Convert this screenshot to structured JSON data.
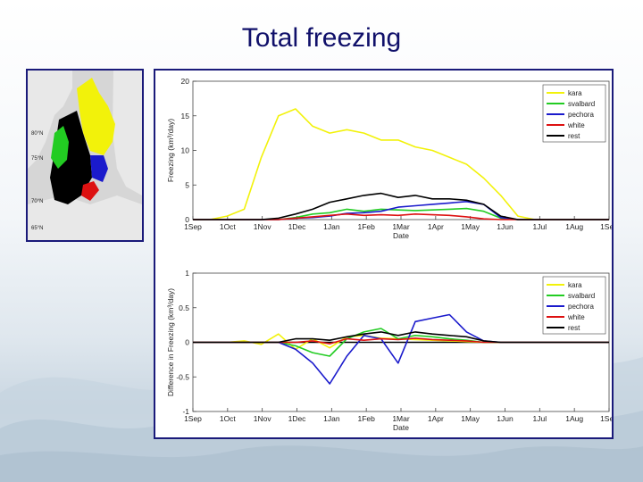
{
  "slide": {
    "title": "Total freezing"
  },
  "colors": {
    "kara": "#f2f20a",
    "svalbard": "#22cc22",
    "pechora": "#1a1acc",
    "white": "#dd1111",
    "rest": "#000000"
  },
  "map": {
    "labels": [
      "80°N",
      "75°N",
      "70°N",
      "65°N"
    ],
    "regions": [
      "kara",
      "svalbard",
      "pechora",
      "white",
      "rest"
    ]
  },
  "chart_data": [
    {
      "type": "line",
      "xlabel": "Date",
      "ylabel": "Freezing  (km³/day)",
      "ylim": [
        0,
        20
      ],
      "yticks": [
        "0",
        "5",
        "10",
        "15",
        "20"
      ],
      "xticks": [
        "1Sep",
        "1Oct",
        "1Nov",
        "1Dec",
        "1Jan",
        "1Feb",
        "1Mar",
        "1Apr",
        "1May",
        "1Jun",
        "1Jul",
        "1Aug",
        "1Sep"
      ],
      "legend_position": "top-right",
      "x": [
        0,
        15,
        30,
        45,
        60,
        75,
        90,
        105,
        120,
        135,
        150,
        165,
        180,
        195,
        210,
        225,
        240,
        255,
        270,
        285,
        300,
        315,
        330,
        345,
        365
      ],
      "series": [
        {
          "name": "kara",
          "values": [
            0,
            0,
            0.5,
            1.5,
            9,
            15,
            16,
            13.5,
            12.5,
            13,
            12.5,
            11.5,
            11.5,
            10.5,
            10,
            9,
            8,
            6,
            3.5,
            0.5,
            0,
            0,
            0,
            0,
            0
          ]
        },
        {
          "name": "svalbard",
          "values": [
            0,
            0,
            0,
            0,
            0,
            0,
            0.3,
            0.8,
            1,
            1.5,
            1.2,
            1.5,
            1.4,
            1.3,
            1.4,
            1.5,
            1.6,
            1.2,
            0.2,
            0,
            0,
            0,
            0,
            0,
            0
          ]
        },
        {
          "name": "pechora",
          "values": [
            0,
            0,
            0,
            0,
            0,
            0,
            0.2,
            0.3,
            0.5,
            0.9,
            1,
            1.2,
            1.8,
            2,
            2.2,
            2.4,
            2.6,
            2.2,
            0.3,
            0,
            0,
            0,
            0,
            0,
            0
          ]
        },
        {
          "name": "white",
          "values": [
            0,
            0,
            0,
            0,
            0,
            0,
            0.2,
            0.4,
            0.6,
            0.8,
            0.6,
            0.7,
            0.6,
            0.8,
            0.7,
            0.6,
            0.4,
            0.1,
            0,
            0,
            0,
            0,
            0,
            0,
            0
          ]
        },
        {
          "name": "rest",
          "values": [
            0,
            0,
            0,
            0,
            0,
            0.2,
            0.8,
            1.5,
            2.5,
            3,
            3.5,
            3.8,
            3.2,
            3.5,
            3,
            3,
            2.8,
            2.2,
            0.5,
            0,
            0,
            0,
            0,
            0,
            0
          ]
        }
      ]
    },
    {
      "type": "line",
      "xlabel": "Date",
      "ylabel": "Difference in Freezing  (km³/day)",
      "ylim": [
        -1,
        1
      ],
      "yticks": [
        "-1",
        "-0.5",
        "0",
        "0.5",
        "1"
      ],
      "xticks": [
        "1Sep",
        "1Oct",
        "1Nov",
        "1Dec",
        "1Jan",
        "1Feb",
        "1Mar",
        "1Apr",
        "1May",
        "1Jun",
        "1Jul",
        "1Aug",
        "1Sep"
      ],
      "legend_position": "top-right",
      "x": [
        0,
        15,
        30,
        45,
        60,
        75,
        90,
        105,
        120,
        135,
        150,
        165,
        180,
        195,
        210,
        225,
        240,
        255,
        270,
        285,
        300,
        315,
        330,
        345,
        365
      ],
      "series": [
        {
          "name": "kara",
          "values": [
            0,
            0,
            0,
            0.02,
            -0.03,
            0.12,
            -0.1,
            0.05,
            -0.08,
            0.08,
            0.1,
            0.06,
            0.05,
            0.04,
            0.03,
            0.02,
            0.01,
            0,
            0,
            0,
            0,
            0,
            0,
            0,
            0
          ]
        },
        {
          "name": "svalbard",
          "values": [
            0,
            0,
            0,
            0,
            0,
            0,
            -0.05,
            -0.15,
            -0.2,
            0.05,
            0.15,
            0.2,
            0.05,
            0.1,
            0.08,
            0.05,
            0.03,
            0,
            0,
            0,
            0,
            0,
            0,
            0,
            0
          ]
        },
        {
          "name": "pechora",
          "values": [
            0,
            0,
            0,
            0,
            0,
            0,
            -0.1,
            -0.3,
            -0.6,
            -0.2,
            0.1,
            0.05,
            -0.3,
            0.3,
            0.35,
            0.4,
            0.15,
            0.02,
            0,
            0,
            0,
            0,
            0,
            0,
            0
          ]
        },
        {
          "name": "white",
          "values": [
            0,
            0,
            0,
            0,
            0,
            0,
            0,
            0.02,
            -0.02,
            0.05,
            0.03,
            0.05,
            0.04,
            0.06,
            0.04,
            0.03,
            0.02,
            0,
            0,
            0,
            0,
            0,
            0,
            0,
            0
          ]
        },
        {
          "name": "rest",
          "values": [
            0,
            0,
            0,
            0,
            0,
            0,
            0.05,
            0.05,
            0.03,
            0.08,
            0.12,
            0.15,
            0.1,
            0.15,
            0.12,
            0.1,
            0.08,
            0.02,
            0,
            0,
            0,
            0,
            0,
            0,
            0
          ]
        }
      ]
    }
  ]
}
